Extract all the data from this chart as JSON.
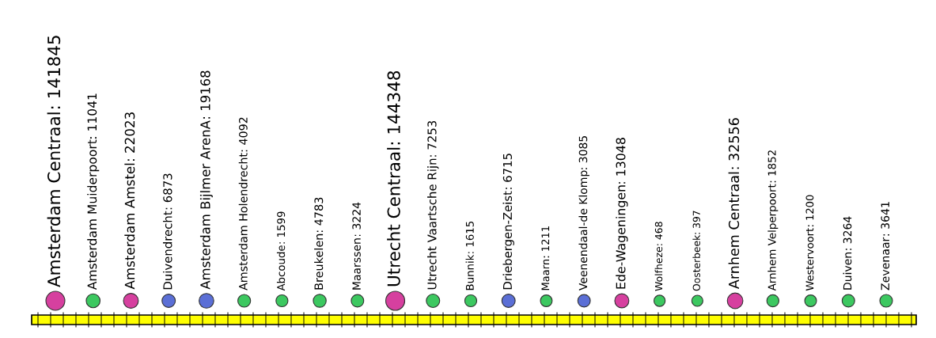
{
  "chart_data": {
    "type": "other",
    "categories": [
      "Amsterdam Centraal",
      "Amsterdam Muiderpoort",
      "Amsterdam Amstel",
      "Duivendrecht",
      "Amsterdam Bijlmer ArenA",
      "Amsterdam Holendrecht",
      "Abcoude",
      "Breukelen",
      "Maarssen",
      "Utrecht Centraal",
      "Utrecht Vaartsche Rijn",
      "Bunnik",
      "Driebergen-Zeist",
      "Maarn",
      "Veenendaal-de Klomp",
      "Ede-Wageningen",
      "Wolfheze",
      "Oosterbeek",
      "Arnhem Centraal",
      "Arnhem Velperpoort",
      "Westervoort",
      "Duiven",
      "Zevenaar"
    ],
    "values": [
      141845,
      11041,
      22023,
      6873,
      19168,
      4092,
      1599,
      4783,
      3224,
      144348,
      7253,
      1615,
      6715,
      1211,
      3085,
      13048,
      468,
      397,
      32556,
      1852,
      1200,
      3264,
      3641
    ],
    "value_labels": [
      ": 141845",
      ": 11041",
      ": 22023",
      ": 6873",
      ": 19168",
      ": 4092",
      ": 1599",
      ": 4783",
      ": 3224",
      ": 144348",
      ": 7253",
      ": 1615",
      ": 6715",
      ": 1211",
      ": 3085",
      ": 13048",
      ": 468",
      ": 397",
      ": 32556",
      ": 1852",
      ": 1200",
      ": 3264",
      ": 3641"
    ],
    "colors": [
      "#d6409f",
      "#3cc860",
      "#d6409f",
      "#5b6fd6",
      "#5b6fd6",
      "#3cc860",
      "#3cc860",
      "#3cc860",
      "#3cc860",
      "#d6409f",
      "#3cc860",
      "#3cc860",
      "#5b6fd6",
      "#3cc860",
      "#5b6fd6",
      "#d6409f",
      "#3cc860",
      "#3cc860",
      "#d6409f",
      "#3cc860",
      "#3cc860",
      "#3cc860",
      "#3cc860"
    ]
  }
}
